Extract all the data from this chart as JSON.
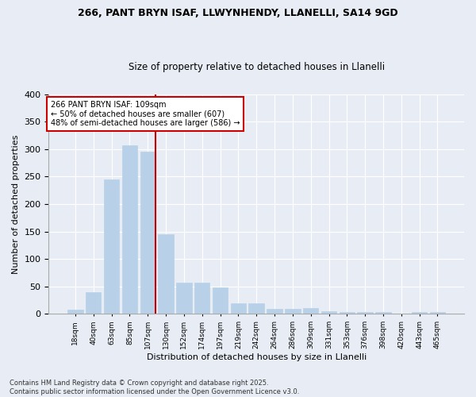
{
  "title1": "266, PANT BRYN ISAF, LLWYNHENDY, LLANELLI, SA14 9GD",
  "title2": "Size of property relative to detached houses in Llanelli",
  "xlabel": "Distribution of detached houses by size in Llanelli",
  "ylabel": "Number of detached properties",
  "bar_labels": [
    "18sqm",
    "40sqm",
    "63sqm",
    "85sqm",
    "107sqm",
    "130sqm",
    "152sqm",
    "174sqm",
    "197sqm",
    "219sqm",
    "242sqm",
    "264sqm",
    "286sqm",
    "309sqm",
    "331sqm",
    "353sqm",
    "376sqm",
    "398sqm",
    "420sqm",
    "443sqm",
    "465sqm"
  ],
  "bar_values": [
    8,
    40,
    245,
    307,
    295,
    145,
    57,
    57,
    48,
    19,
    20,
    9,
    10,
    11,
    5,
    4,
    3,
    3,
    1,
    4,
    4
  ],
  "bar_color": "#b8d0e8",
  "bar_edgecolor": "#b8d0e8",
  "vline_color": "#cc0000",
  "annotation_title": "266 PANT BRYN ISAF: 109sqm",
  "annotation_line1": "← 50% of detached houses are smaller (607)",
  "annotation_line2": "48% of semi-detached houses are larger (586) →",
  "annotation_box_color": "#cc0000",
  "ylim": [
    0,
    400
  ],
  "yticks": [
    0,
    50,
    100,
    150,
    200,
    250,
    300,
    350,
    400
  ],
  "footer1": "Contains HM Land Registry data © Crown copyright and database right 2025.",
  "footer2": "Contains public sector information licensed under the Open Government Licence v3.0.",
  "bg_color": "#e8edf5",
  "plot_bg_color": "#e8edf5"
}
